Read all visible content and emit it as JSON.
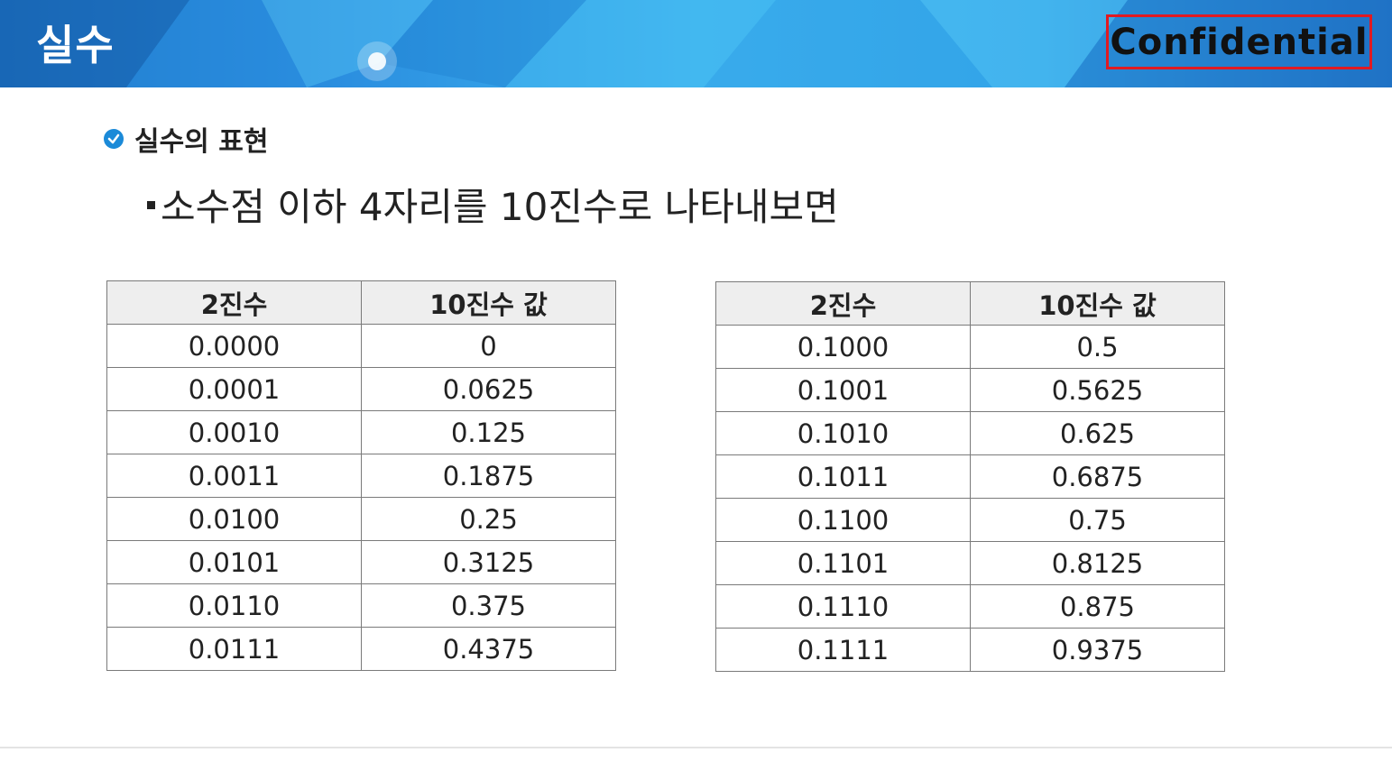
{
  "header": {
    "title": "실수",
    "confidential": "Confidential"
  },
  "section": {
    "title": "실수의 표현",
    "bullet": "소수점 이하 4자리를 10진수로 나타내보면"
  },
  "colors": {
    "header_blue": "#2b8fe0",
    "confidential_border": "#e11a22",
    "check_icon": "#1b8ad8"
  },
  "tables": [
    {
      "headers": [
        "2진수",
        "10진수 값"
      ],
      "rows": [
        [
          "0.0000",
          "0"
        ],
        [
          "0.0001",
          "0.0625"
        ],
        [
          "0.0010",
          "0.125"
        ],
        [
          "0.0011",
          "0.1875"
        ],
        [
          "0.0100",
          "0.25"
        ],
        [
          "0.0101",
          "0.3125"
        ],
        [
          "0.0110",
          "0.375"
        ],
        [
          "0.0111",
          "0.4375"
        ]
      ]
    },
    {
      "headers": [
        "2진수",
        "10진수 값"
      ],
      "rows": [
        [
          "0.1000",
          "0.5"
        ],
        [
          "0.1001",
          "0.5625"
        ],
        [
          "0.1010",
          "0.625"
        ],
        [
          "0.1011",
          "0.6875"
        ],
        [
          "0.1100",
          "0.75"
        ],
        [
          "0.1101",
          "0.8125"
        ],
        [
          "0.1110",
          "0.875"
        ],
        [
          "0.1111",
          "0.9375"
        ]
      ]
    }
  ]
}
